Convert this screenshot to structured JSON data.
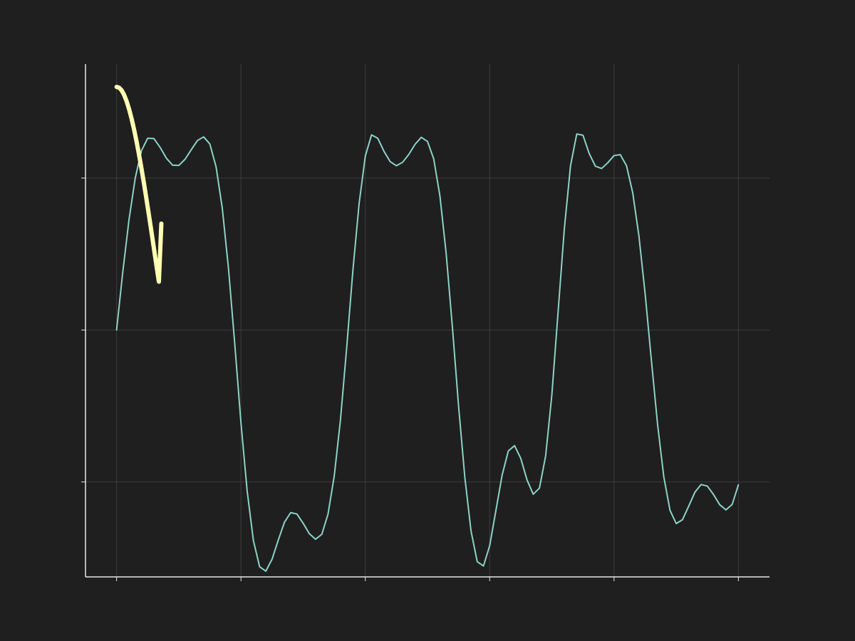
{
  "chart_data": {
    "type": "line",
    "xlim": [
      -0.25,
      5.25
    ],
    "ylim": [
      -1.625,
      1.75
    ],
    "xticks": [
      0,
      1,
      2,
      3,
      4,
      5
    ],
    "yticks": [
      -1,
      0,
      1
    ],
    "grid": true,
    "series": [
      {
        "color": "#8dd3c7",
        "x": [
          0.0,
          0.05,
          0.1,
          0.15,
          0.2,
          0.25,
          0.3,
          0.35,
          0.4,
          0.45,
          0.5,
          0.55,
          0.6,
          0.65,
          0.7,
          0.75,
          0.8,
          0.85,
          0.9,
          0.95,
          1.0,
          1.05,
          1.1,
          1.15,
          1.2,
          1.25,
          1.3,
          1.35,
          1.4,
          1.45,
          1.5,
          1.55,
          1.6,
          1.65,
          1.7,
          1.75,
          1.8,
          1.85,
          1.9,
          1.95,
          2.0,
          2.05,
          2.1,
          2.15,
          2.2,
          2.25,
          2.3,
          2.35,
          2.4,
          2.45,
          2.5,
          2.55,
          2.6,
          2.65,
          2.7,
          2.75,
          2.8,
          2.85,
          2.9,
          2.95,
          3.0,
          3.05,
          3.1,
          3.15,
          3.2,
          3.25,
          3.3,
          3.35,
          3.4,
          3.45,
          3.5,
          3.55,
          3.6,
          3.65,
          3.7,
          3.75,
          3.8,
          3.85,
          3.9,
          3.95,
          4.0,
          4.05,
          4.1,
          4.15,
          4.2,
          4.25,
          4.3,
          4.35,
          4.4,
          4.45,
          4.5,
          4.55,
          4.6,
          4.65,
          4.7,
          4.75,
          4.8,
          4.85,
          4.9,
          4.95,
          5.0
        ],
        "y": [
          0.0,
          0.383,
          0.727,
          1.0,
          1.18,
          1.262,
          1.26,
          1.202,
          1.131,
          1.085,
          1.083,
          1.123,
          1.186,
          1.247,
          1.271,
          1.224,
          1.074,
          0.801,
          0.403,
          -0.089,
          -0.611,
          -1.06,
          -1.385,
          -1.558,
          -1.587,
          -1.509,
          -1.383,
          -1.265,
          -1.202,
          -1.211,
          -1.272,
          -1.341,
          -1.377,
          -1.345,
          -1.212,
          -0.962,
          -0.593,
          -0.118,
          0.391,
          0.831,
          1.145,
          1.284,
          1.262,
          1.176,
          1.108,
          1.081,
          1.104,
          1.156,
          1.222,
          1.268,
          1.241,
          1.126,
          0.882,
          0.505,
          0.021,
          -0.502,
          -0.968,
          -1.323,
          -1.525,
          -1.553,
          -1.42,
          -1.188,
          -0.955,
          -0.796,
          -0.761,
          -0.845,
          -0.986,
          -1.081,
          -1.041,
          -0.829,
          -0.426,
          0.118,
          0.663,
          1.081,
          1.29,
          1.282,
          1.162,
          1.078,
          1.063,
          1.101,
          1.148,
          1.154,
          1.082,
          0.904,
          0.619,
          0.239,
          -0.197,
          -0.621,
          -0.966,
          -1.187,
          -1.274,
          -1.249,
          -1.16,
          -1.068,
          -1.017,
          -1.027,
          -1.083,
          -1.15,
          -1.184,
          -1.148,
          -1.019
        ]
      },
      {
        "color": "#ffffb3",
        "x": [
          0.0,
          0.02,
          0.04,
          0.06,
          0.08,
          0.1,
          0.12,
          0.14,
          0.16,
          0.18,
          0.2,
          0.22,
          0.24,
          0.26,
          0.28,
          0.3,
          0.32,
          0.34,
          0.36
        ],
        "y": [
          1.6,
          1.595,
          1.578,
          1.548,
          1.507,
          1.455,
          1.393,
          1.322,
          1.243,
          1.156,
          1.063,
          0.965,
          0.862,
          0.756,
          0.648,
          0.538,
          0.428,
          0.318,
          0.7
        ]
      }
    ]
  }
}
